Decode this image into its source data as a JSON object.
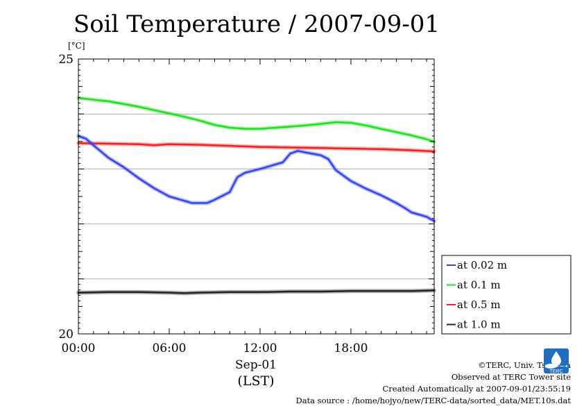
{
  "chart_data": {
    "type": "line",
    "title": "Soil Temperature / 2007-09-01",
    "ylabel": "[°C]",
    "xlabel_date": "Sep-01",
    "xlabel_unit": "(LST)",
    "x_ticks": [
      "00:00",
      "06:00",
      "12:00",
      "18:00"
    ],
    "ylim": [
      20,
      25
    ],
    "y_ticks": [
      "20",
      "25"
    ],
    "y_grid": [
      21,
      22,
      23,
      24
    ],
    "xlim_hours": [
      0,
      23.5
    ],
    "legend_position": "right, lower",
    "series": [
      {
        "name": "at 1.0 m",
        "color": "#222222",
        "x": [
          0,
          2,
          4,
          6,
          7,
          8,
          10,
          12,
          14,
          16,
          18,
          20,
          22,
          23.5
        ],
        "y": [
          20.75,
          20.76,
          20.76,
          20.75,
          20.74,
          20.75,
          20.76,
          20.76,
          20.77,
          20.77,
          20.78,
          20.78,
          20.78,
          20.79
        ]
      },
      {
        "name": "at 0.5 m",
        "color": "#ee2222",
        "x": [
          0,
          2,
          4,
          5,
          6,
          8,
          10,
          12,
          14,
          16,
          18,
          20,
          22,
          23.5
        ],
        "y": [
          23.47,
          23.46,
          23.45,
          23.43,
          23.45,
          23.44,
          23.42,
          23.4,
          23.39,
          23.38,
          23.37,
          23.36,
          23.34,
          23.32
        ]
      },
      {
        "name": "at 0.1 m",
        "color": "#22dd22",
        "x": [
          0,
          1,
          2,
          3,
          4,
          5,
          6,
          7,
          8,
          9,
          10,
          11,
          12,
          13,
          14,
          15,
          16,
          17,
          18,
          19,
          20,
          21,
          22,
          23,
          23.5
        ],
        "y": [
          24.29,
          24.26,
          24.23,
          24.18,
          24.13,
          24.07,
          24.01,
          23.95,
          23.88,
          23.8,
          23.75,
          23.73,
          23.73,
          23.75,
          23.77,
          23.79,
          23.82,
          23.85,
          23.84,
          23.79,
          23.73,
          23.67,
          23.61,
          23.54,
          23.49
        ]
      },
      {
        "name": "at 0.02 m",
        "color": "#3344ee",
        "x": [
          0,
          0.5,
          1,
          2,
          3,
          4,
          5,
          6,
          7,
          7.5,
          8,
          8.5,
          9,
          10,
          10.5,
          11,
          12,
          13,
          13.5,
          14,
          14.5,
          15,
          16,
          16.5,
          17,
          18,
          19,
          20,
          21,
          21.5,
          22,
          23,
          23.5
        ],
        "y": [
          23.6,
          23.55,
          23.43,
          23.2,
          23.03,
          22.83,
          22.65,
          22.5,
          22.42,
          22.38,
          22.38,
          22.38,
          22.44,
          22.58,
          22.85,
          22.93,
          23.0,
          23.08,
          23.12,
          23.28,
          23.33,
          23.3,
          23.25,
          23.18,
          22.98,
          22.78,
          22.64,
          22.52,
          22.38,
          22.3,
          22.21,
          22.13,
          22.05
        ]
      }
    ]
  },
  "legend_order": [
    3,
    2,
    1,
    0
  ],
  "credits": [
    "©TERC, Univ. Tsukuba",
    "Observed at TERC Tower site",
    "Created Automatically at 2007-09-01/23:55:19",
    "Data source : /home/hojyo/new/TERC-data/sorted_data/MET.10s.dat"
  ],
  "logo_text": "TERC"
}
